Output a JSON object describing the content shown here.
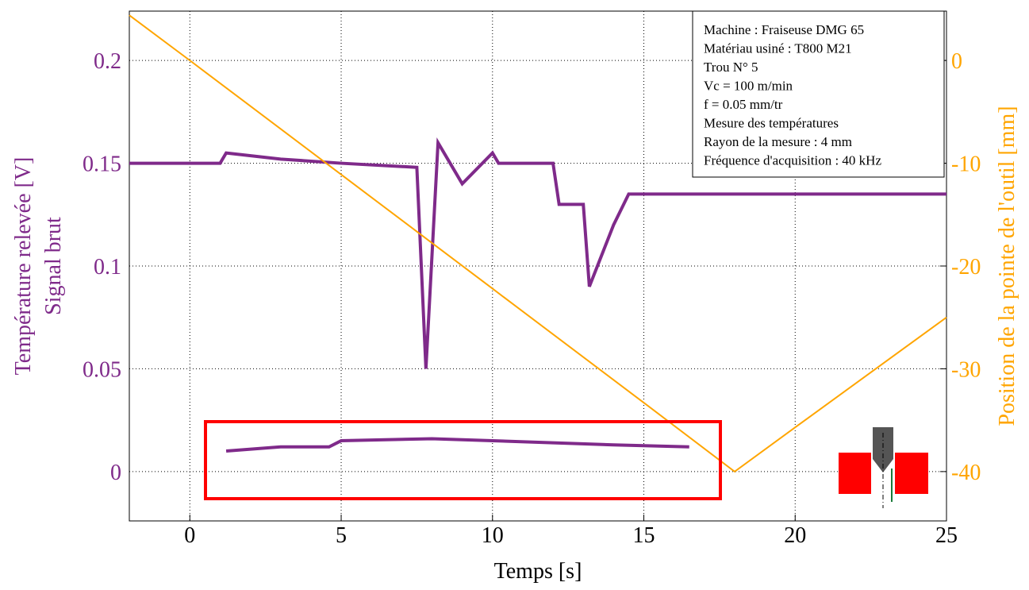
{
  "chart_data": {
    "type": "line",
    "xlabel": "Temps [s]",
    "ylabel": [
      "Température relevée [V]",
      "Signal brut"
    ],
    "y2label": "Position de la pointe de l'outil [mm]",
    "xlim": [
      -2,
      25
    ],
    "xticks": [
      0,
      5,
      10,
      15,
      20,
      25
    ],
    "ylim": [
      -0.024,
      0.224
    ],
    "yticks": [
      0,
      0.05,
      0.1,
      0.15,
      0.2
    ],
    "y2lim": [
      -44.8,
      4.8
    ],
    "y2ticks": [
      -40,
      -30,
      -20,
      -10,
      0
    ],
    "grid": true,
    "annotations": [
      "Machine : Fraiseuse DMG 65",
      "Matériau usiné : T800 M21",
      "Trou N° 5",
      "Vc = 100 m/min",
      "f  = 0.05 mm/tr",
      "Mesure des températures",
      "Rayon de la mesure : 4 mm",
      "Fréquence d'acquisition : 40 kHz"
    ],
    "series": [
      {
        "color": "#7f2a8a",
        "x": [
          -2,
          1,
          1.2,
          3,
          5,
          7.5,
          7.8,
          8.2,
          9,
          10,
          10.2,
          12,
          12.2,
          13,
          13.2,
          14,
          14.5,
          16.5,
          16.6,
          20,
          25
        ],
        "values": [
          0.15,
          0.15,
          0.155,
          0.152,
          0.15,
          0.148,
          0.05,
          0.16,
          0.14,
          0.155,
          0.15,
          0.15,
          0.13,
          0.13,
          0.09,
          0.12,
          0.135,
          0.135,
          0.135,
          0.135,
          0.135
        ]
      },
      {
        "color": "#7f2a8a",
        "x": [
          1.2,
          3,
          4.6,
          5,
          8,
          10,
          12,
          14,
          16.5
        ],
        "values": [
          0.01,
          0.012,
          0.012,
          0.015,
          0.016,
          0.015,
          0.014,
          0.013,
          0.012
        ]
      },
      {
        "color": "#ffa500",
        "axis": "y2",
        "x": [
          -2,
          0,
          5,
          10,
          15,
          18,
          20,
          25
        ],
        "values": [
          4.4,
          0,
          -11.1,
          -22.2,
          -33.3,
          -40,
          -35.7,
          -25
        ]
      }
    ]
  }
}
